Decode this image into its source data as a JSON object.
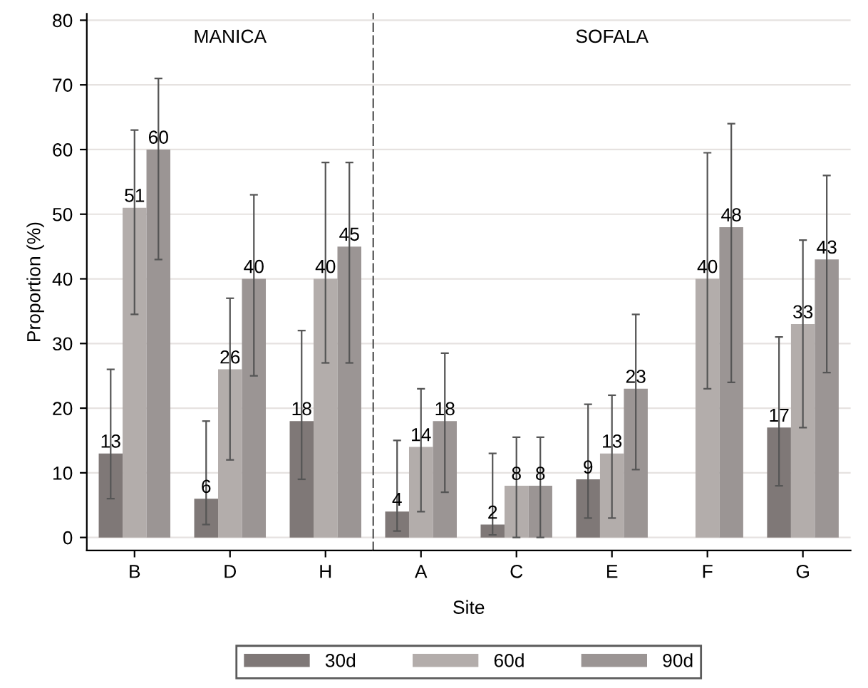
{
  "chart_data": [
    {
      "type": "bar",
      "title": "MANICA",
      "ylabel": "Proportion (%)",
      "categories": [
        "B",
        "D",
        "H"
      ],
      "series": [
        {
          "name": "30d",
          "color": "#7f7877",
          "values": [
            13,
            6,
            18
          ],
          "errors": [
            [
              6,
              26
            ],
            [
              2,
              18
            ],
            [
              9,
              32
            ]
          ]
        },
        {
          "name": "60d",
          "color": "#b3adab",
          "values": [
            51,
            26,
            40
          ],
          "errors": [
            [
              34.5,
              63
            ],
            [
              12,
              37
            ],
            [
              27,
              58
            ]
          ]
        },
        {
          "name": "90d",
          "color": "#9b9594",
          "values": [
            60,
            40,
            45
          ],
          "errors": [
            [
              43,
              71
            ],
            [
              25,
              53
            ],
            [
              27,
              58
            ]
          ]
        }
      ],
      "ylim": [
        -2,
        81
      ],
      "yticks": [
        0,
        10,
        20,
        30,
        40,
        50,
        60,
        70,
        80
      ],
      "data_labels": true,
      "grid": "y",
      "legend": "bottom"
    },
    {
      "type": "bar",
      "title": "SOFALA",
      "xlabel": "Site",
      "categories": [
        "A",
        "C",
        "E",
        "F",
        "G"
      ],
      "series": [
        {
          "color": "#7f7877",
          "values": [
            4,
            2,
            9,
            null,
            17
          ],
          "errors": [
            [
              1,
              15
            ],
            [
              0.4,
              13
            ],
            [
              3,
              20.6
            ],
            null,
            [
              8,
              31
            ]
          ]
        },
        {
          "color": "#b3adab",
          "values": [
            14,
            8,
            13,
            40,
            33
          ],
          "errors": [
            [
              4,
              23
            ],
            [
              0,
              15.5
            ],
            [
              3,
              22
            ],
            [
              23,
              59.5
            ],
            [
              17,
              46
            ]
          ]
        },
        {
          "color": "#9b9594",
          "values": [
            18,
            8,
            23,
            48,
            43
          ],
          "errors": [
            [
              7,
              28.5
            ],
            [
              0,
              15.5
            ],
            [
              10.5,
              34.5
            ],
            [
              24,
              64
            ],
            [
              25.5,
              56
            ]
          ]
        }
      ],
      "ylim": [
        -2,
        81
      ],
      "yticks": [
        0,
        10,
        20,
        30,
        40,
        50,
        60,
        70,
        80
      ],
      "tick_labels": "x",
      "data_labels": true,
      "grid": "y"
    }
  ]
}
